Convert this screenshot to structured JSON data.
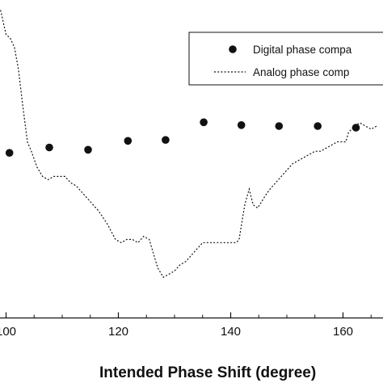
{
  "chart_data": {
    "type": "scatter",
    "xlabel": "Intended Phase Shift (degree)",
    "ylabel": "",
    "xlim": [
      98.5,
      166
    ],
    "ylim": [
      0,
      1
    ],
    "grid": false,
    "legend_position": "top-right",
    "x_ticks": [
      "100",
      "120",
      "140",
      "160"
    ],
    "series": [
      {
        "name": "Digital phase compa",
        "kind": "markers",
        "x": [
          100.6,
          107.7,
          114.6,
          121.7,
          128.4,
          135.2,
          141.9,
          148.6,
          155.5,
          162.3
        ],
        "y": [
          0.515,
          0.532,
          0.525,
          0.553,
          0.556,
          0.612,
          0.603,
          0.6,
          0.6,
          0.595
        ]
      },
      {
        "name": "Analog phase comp",
        "kind": "dotted-line",
        "x": [
          98.5,
          99.0,
          100.0,
          100.7,
          101.5,
          102.2,
          103.0,
          103.8,
          104.5,
          105.5,
          106.5,
          107.5,
          108.5,
          109.5,
          110.5,
          111.5,
          112.5,
          113.5,
          115.0,
          116.5,
          118.0,
          119.5,
          120.5,
          121.5,
          122.5,
          123.5,
          124.5,
          125.5,
          126.0,
          127.0,
          128.0,
          129.0,
          130.0,
          131.0,
          132.0,
          133.0,
          134.0,
          135.0,
          136.0,
          137.0,
          138.0,
          139.0,
          140.0,
          141.0,
          141.5,
          142.5,
          143.3,
          144.0,
          144.8,
          145.5,
          146.2,
          147.0,
          148.0,
          149.0,
          150.0,
          151.0,
          152.0,
          153.0,
          154.0,
          155.0,
          156.0,
          157.0,
          158.0,
          159.0,
          160.0,
          160.5,
          161.0,
          162.0,
          163.0,
          164.0,
          165.0,
          166.0
        ],
        "y": [
          0.97,
          0.97,
          0.89,
          0.88,
          0.85,
          0.78,
          0.66,
          0.55,
          0.52,
          0.47,
          0.44,
          0.43,
          0.44,
          0.44,
          0.44,
          0.42,
          0.41,
          0.39,
          0.36,
          0.33,
          0.29,
          0.24,
          0.23,
          0.24,
          0.24,
          0.23,
          0.25,
          0.24,
          0.21,
          0.15,
          0.12,
          0.13,
          0.14,
          0.16,
          0.17,
          0.19,
          0.21,
          0.23,
          0.23,
          0.23,
          0.23,
          0.23,
          0.23,
          0.23,
          0.24,
          0.35,
          0.4,
          0.35,
          0.34,
          0.36,
          0.38,
          0.4,
          0.42,
          0.44,
          0.46,
          0.48,
          0.49,
          0.5,
          0.51,
          0.52,
          0.52,
          0.53,
          0.54,
          0.55,
          0.55,
          0.55,
          0.58,
          0.6,
          0.61,
          0.6,
          0.59,
          0.6
        ]
      }
    ]
  }
}
